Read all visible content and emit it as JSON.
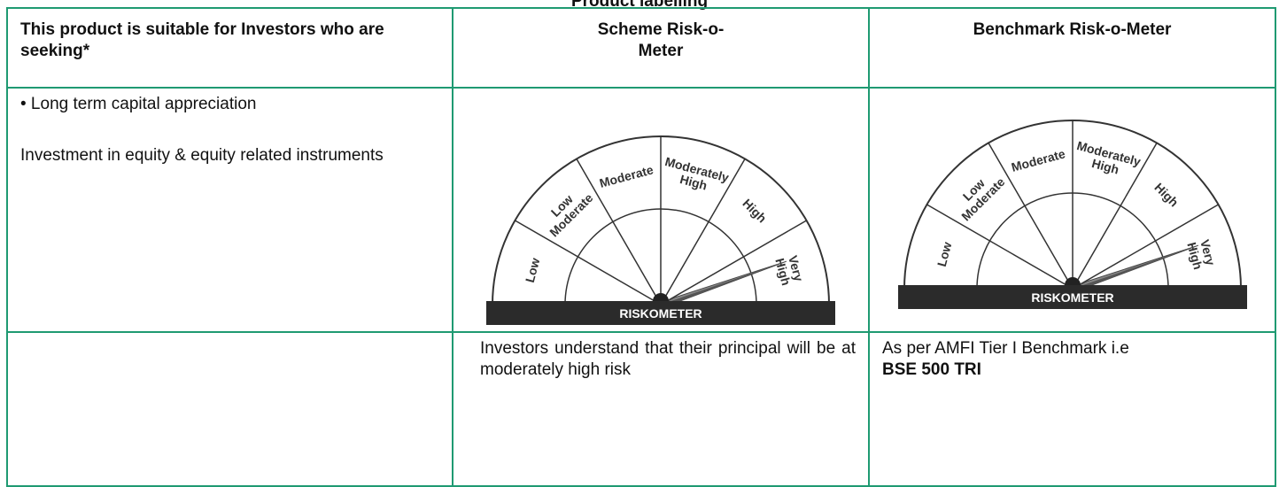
{
  "title": "Product labelling",
  "table": {
    "headers": [
      "This product is suitable for Investors who are seeking*",
      "Scheme Risk-o-Meter",
      "Benchmark Risk-o-Meter"
    ],
    "suitability": [
      "• Long term capital appreciation",
      "Investment in equity & equity related instruments"
    ],
    "scheme_note": "Investors understand that their principal will be at moderately high risk",
    "benchmark_note": "As per AMFI Tier I Benchmark i.e",
    "benchmark_name": "BSE 500 TRI"
  },
  "riskometers": [
    {
      "segments": [
        [
          "Low"
        ],
        [
          "Low",
          "Moderate"
        ],
        [
          "Moderate"
        ],
        [
          "Moderately",
          "High"
        ],
        [
          "High"
        ],
        [
          "Very",
          "High"
        ]
      ],
      "caption": "RISKOMETER"
    },
    {
      "segments": [
        [
          "Low"
        ],
        [
          "Low",
          "Moderate"
        ],
        [
          "Moderate"
        ],
        [
          "Moderately",
          "High"
        ],
        [
          "High"
        ],
        [
          "Very",
          "High"
        ]
      ],
      "caption": "RISKOMETER"
    }
  ]
}
